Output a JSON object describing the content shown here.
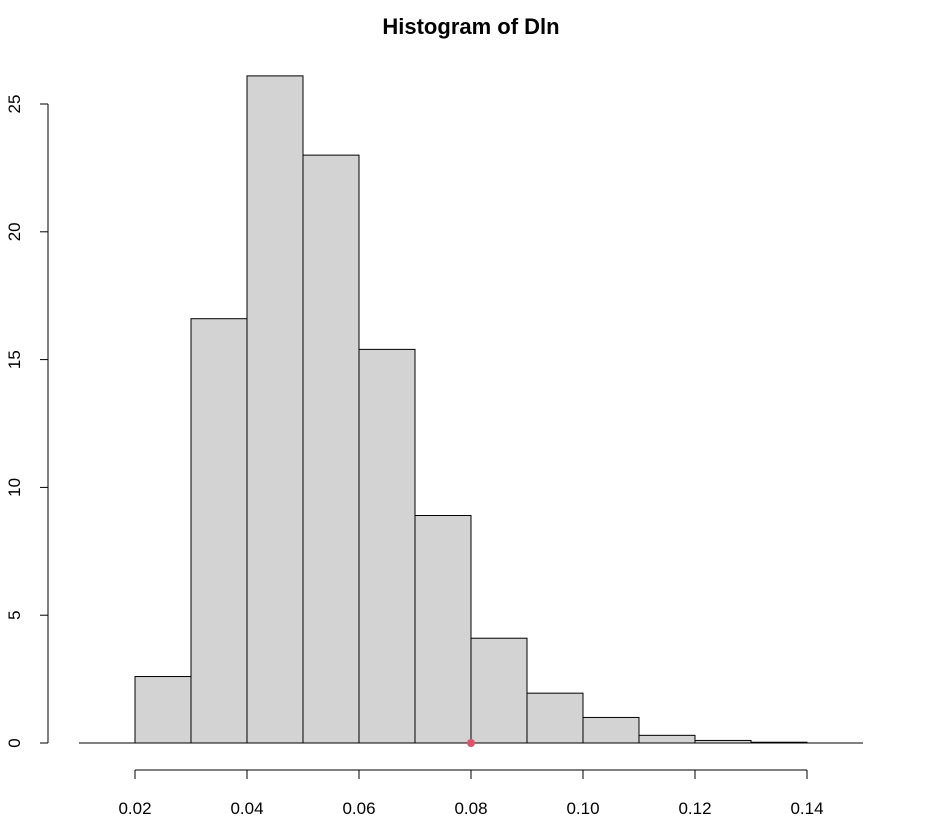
{
  "chart_data": {
    "type": "bar",
    "title": "Histogram of Dln",
    "xlabel": "",
    "ylabel": "",
    "bins": [
      {
        "start": 0.02,
        "end": 0.03,
        "value": 2.6
      },
      {
        "start": 0.03,
        "end": 0.04,
        "value": 16.6
      },
      {
        "start": 0.04,
        "end": 0.05,
        "value": 26.1
      },
      {
        "start": 0.05,
        "end": 0.06,
        "value": 23.0
      },
      {
        "start": 0.06,
        "end": 0.07,
        "value": 15.4
      },
      {
        "start": 0.07,
        "end": 0.08,
        "value": 8.9
      },
      {
        "start": 0.08,
        "end": 0.09,
        "value": 4.1
      },
      {
        "start": 0.09,
        "end": 0.1,
        "value": 1.95
      },
      {
        "start": 0.1,
        "end": 0.11,
        "value": 1.0
      },
      {
        "start": 0.11,
        "end": 0.12,
        "value": 0.3
      },
      {
        "start": 0.12,
        "end": 0.13,
        "value": 0.1
      },
      {
        "start": 0.13,
        "end": 0.14,
        "value": 0.03
      }
    ],
    "x_ticks": [
      "0.02",
      "0.04",
      "0.06",
      "0.08",
      "0.10",
      "0.12",
      "0.14"
    ],
    "x_tick_values": [
      0.02,
      0.04,
      0.06,
      0.08,
      0.1,
      0.12,
      0.14
    ],
    "y_ticks": [
      "0",
      "5",
      "10",
      "15",
      "20",
      "25"
    ],
    "y_tick_values": [
      0,
      5,
      10,
      15,
      20,
      25
    ],
    "xlim": [
      0.01,
      0.15
    ],
    "ylim": [
      0,
      27
    ],
    "grid": false,
    "bar_fill": "#d3d3d3",
    "bar_stroke": "#000000",
    "marker": {
      "x": 0.08,
      "y": 0,
      "color": "#df536b"
    }
  }
}
